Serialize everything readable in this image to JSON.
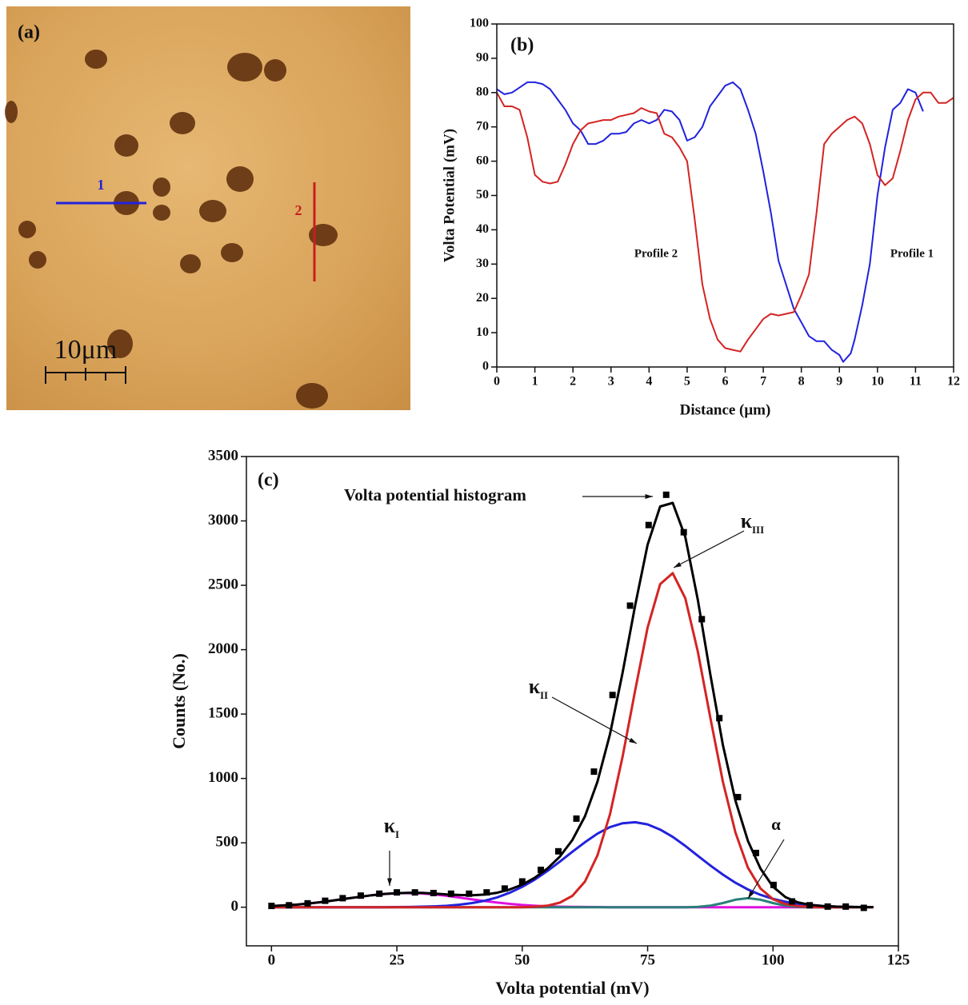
{
  "panel_a": {
    "label": "(a)",
    "line_1_label": "1",
    "line_2_label": "2",
    "scale_bar_label": "10μm"
  },
  "chart_data": [
    {
      "type": "line",
      "title": "(b)",
      "xlabel": "Distance (μm)",
      "ylabel": "Volta Potential (mV)",
      "xlim": [
        0,
        12
      ],
      "ylim": [
        0,
        100
      ],
      "xticks": [
        0,
        1,
        2,
        3,
        4,
        5,
        6,
        7,
        8,
        9,
        10,
        11,
        12
      ],
      "yticks": [
        0,
        10,
        20,
        30,
        40,
        50,
        60,
        70,
        80,
        90,
        100
      ],
      "annotations": [
        "Profile 2",
        "Profile 1"
      ],
      "series": [
        {
          "color": "#2222dd",
          "x": [
            0,
            0.2,
            0.4,
            0.6,
            0.8,
            1.0,
            1.2,
            1.4,
            1.6,
            1.8,
            2.0,
            2.2,
            2.4,
            2.6,
            2.8,
            3.0,
            3.2,
            3.4,
            3.6,
            3.8,
            4.0,
            4.2,
            4.4,
            4.6,
            4.8,
            5.0,
            5.2,
            5.4,
            5.6,
            5.8,
            6.0,
            6.2,
            6.4,
            6.6,
            6.8,
            7.0,
            7.2,
            7.4,
            7.6,
            7.8,
            8.0,
            8.2,
            8.4,
            8.6,
            8.8,
            9.0,
            9.1,
            9.3,
            9.4,
            9.6,
            9.8,
            10.0,
            10.2,
            10.4,
            10.6,
            10.8,
            11.0,
            11.2
          ],
          "values": [
            81,
            79.5,
            80,
            81.5,
            83,
            83,
            82.5,
            81,
            78,
            75,
            71,
            69,
            65,
            65,
            66,
            68,
            68,
            68.5,
            71,
            72,
            71,
            72,
            75,
            74.5,
            72,
            66,
            67,
            70,
            76,
            79,
            82,
            83,
            81,
            75,
            68,
            57,
            45,
            31,
            24,
            17,
            13,
            9,
            7.5,
            7.5,
            5,
            3.5,
            1.5,
            4,
            8,
            18,
            30,
            50,
            64,
            75,
            77,
            81,
            80,
            74.5
          ]
        },
        {
          "color": "#d42424",
          "x": [
            0,
            0.2,
            0.4,
            0.6,
            0.8,
            1.0,
            1.2,
            1.4,
            1.6,
            1.8,
            2.0,
            2.2,
            2.4,
            2.6,
            2.8,
            3.0,
            3.2,
            3.4,
            3.6,
            3.8,
            4.0,
            4.2,
            4.4,
            4.6,
            4.8,
            5.0,
            5.2,
            5.4,
            5.6,
            5.8,
            6.0,
            6.2,
            6.4,
            6.6,
            6.8,
            7.0,
            7.2,
            7.4,
            7.6,
            7.8,
            8.0,
            8.2,
            8.4,
            8.6,
            8.8,
            9.0,
            9.2,
            9.4,
            9.6,
            9.8,
            10.0,
            10.2,
            10.4,
            10.6,
            10.8,
            11.0,
            11.2,
            11.4,
            11.6,
            11.8,
            12.0
          ],
          "values": [
            80,
            76,
            76,
            75,
            67,
            56,
            54,
            53.5,
            54,
            59,
            65,
            69,
            71,
            71.5,
            72,
            72,
            73,
            73.5,
            74,
            75.5,
            74.5,
            74,
            68,
            67,
            64,
            60,
            43,
            24,
            14,
            8,
            5.5,
            5,
            4.5,
            8,
            11,
            14,
            15.5,
            15,
            15.5,
            16,
            21,
            27,
            45,
            65,
            68,
            70,
            72,
            73,
            71,
            65,
            56,
            53,
            55,
            63,
            72,
            78,
            80,
            80,
            77,
            77,
            78.5
          ]
        }
      ]
    },
    {
      "type": "line",
      "title": "(c)",
      "xlabel": "Volta potential (mV)",
      "ylabel": "Counts (No.)",
      "xlim": [
        -5,
        125
      ],
      "ylim": [
        -300,
        3500
      ],
      "xticks": [
        0,
        25,
        50,
        75,
        100,
        125
      ],
      "yticks": [
        0,
        500,
        1000,
        1500,
        2000,
        2500,
        3000,
        3500
      ],
      "annotations": [
        {
          "text": "Volta potential histogram"
        },
        {
          "text": "κ",
          "sub": "III"
        },
        {
          "text": "κ",
          "sub": "II"
        },
        {
          "text": "κ",
          "sub": "I"
        },
        {
          "text": "α"
        }
      ],
      "x": [
        0,
        2.5,
        5,
        7.5,
        10,
        12.5,
        15,
        17.5,
        20,
        22.5,
        25,
        27.5,
        30,
        32.5,
        35,
        37.5,
        40,
        42.5,
        45,
        47.5,
        50,
        52.5,
        55,
        57.5,
        60,
        62.5,
        65,
        67.5,
        70,
        72.5,
        75,
        77.5,
        80,
        82.5,
        85,
        87.5,
        90,
        92.5,
        95,
        97.5,
        100,
        102.5,
        105,
        107.5,
        110,
        112.5,
        115,
        117.5,
        120
      ],
      "series": [
        {
          "color": "#e010e0",
          "values": [
            9,
            14,
            20,
            29,
            40,
            53,
            67,
            80,
            93,
            103,
            108,
            110,
            107,
            99,
            88,
            75,
            61,
            48,
            36,
            26,
            17,
            11,
            7,
            4,
            3,
            2,
            1,
            0,
            0,
            0,
            0,
            0,
            0,
            0,
            0,
            0,
            0,
            0,
            0,
            0,
            0,
            0,
            0,
            0,
            0,
            0,
            0,
            0,
            0
          ]
        },
        {
          "color": "#2a7f7a",
          "values": [
            0,
            0,
            0,
            0,
            0,
            0,
            0,
            0,
            0,
            0,
            0,
            0,
            0,
            0,
            0,
            0,
            0,
            0,
            0,
            0,
            0,
            0,
            0,
            0,
            0,
            0,
            0,
            0,
            0,
            0,
            0,
            0,
            0,
            0,
            3,
            12,
            32,
            58,
            70,
            58,
            32,
            12,
            3,
            0,
            0,
            0,
            0,
            0,
            0
          ]
        },
        {
          "color": "#2222dd",
          "values": [
            0,
            0,
            0,
            0,
            0,
            0,
            0,
            0,
            0,
            0,
            1,
            2,
            4,
            7,
            11,
            20,
            32,
            50,
            76,
            112,
            158,
            214,
            281,
            354,
            431,
            505,
            571,
            622,
            652,
            660,
            643,
            603,
            546,
            476,
            400,
            324,
            253,
            190,
            138,
            96,
            65,
            42,
            26,
            16,
            9,
            5,
            3,
            1,
            1
          ]
        },
        {
          "color": "#d42424",
          "values": [
            0,
            0,
            0,
            0,
            0,
            0,
            0,
            0,
            0,
            0,
            0,
            0,
            0,
            0,
            0,
            0,
            0,
            0,
            0,
            0,
            0,
            4,
            12,
            35,
            88,
            199,
            402,
            722,
            1168,
            1682,
            2172,
            2509,
            2594,
            2400,
            1987,
            1472,
            975,
            580,
            307,
            146,
            62,
            24,
            8,
            2,
            0,
            0,
            0,
            0,
            0
          ]
        },
        {
          "color": "#000000",
          "values": [
            9,
            14,
            20,
            29,
            40,
            53,
            67,
            80,
            93,
            103,
            109,
            112,
            111,
            106,
            99,
            95,
            93,
            98,
            112,
            138,
            175,
            229,
            300,
            393,
            522,
            706,
            974,
            1344,
            1820,
            2342,
            2815,
            3112,
            3140,
            2876,
            2390,
            1808,
            1260,
            828,
            515,
            300,
            159,
            78,
            37,
            18,
            9,
            5,
            3,
            1,
            1
          ]
        },
        {
          "color": "#000000",
          "marker": "square",
          "x": [
            0,
            3.5,
            7.2,
            10.7,
            14.2,
            17.8,
            21.5,
            25,
            28.6,
            32.3,
            35.8,
            39.4,
            42.9,
            46.5,
            50,
            53.7,
            57.2,
            60.8,
            64.3,
            68,
            71.5,
            75.2,
            78.7,
            82.2,
            85.8,
            89.3,
            93,
            96.6,
            100.1,
            103.8,
            107.3,
            110.9,
            114.5,
            118.1
          ],
          "values": [
            10,
            15,
            30,
            50,
            70,
            90,
            105,
            115,
            115,
            110,
            105,
            105,
            115,
            145,
            200,
            290,
            434,
            688,
            1053,
            1648,
            2342,
            2968,
            3203,
            2912,
            2237,
            1468,
            855,
            421,
            173,
            45,
            15,
            5,
            5,
            -5
          ]
        }
      ]
    }
  ]
}
